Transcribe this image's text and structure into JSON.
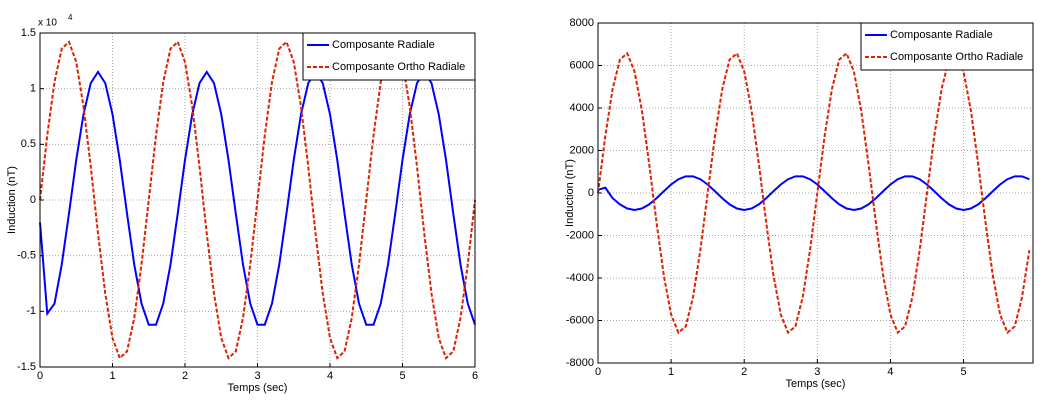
{
  "chart_data": [
    {
      "type": "line",
      "x_label": "Temps (sec)",
      "y_label": "Induction (nT)",
      "axis_multiplier": "x 10",
      "axis_multiplier_exp": "4",
      "x": [
        0,
        0.1,
        0.2,
        0.3,
        0.4,
        0.5,
        0.6,
        0.7,
        0.8,
        0.9,
        1,
        1.1,
        1.2,
        1.3,
        1.4,
        1.5,
        1.6,
        1.7,
        1.8,
        1.9,
        2,
        2.1,
        2.2,
        2.3,
        2.4,
        2.5,
        2.6,
        2.7,
        2.8,
        2.9,
        3,
        3.1,
        3.2,
        3.3,
        3.4,
        3.5,
        3.6,
        3.7,
        3.8,
        3.9,
        4,
        4.1,
        4.2,
        4.3,
        4.4,
        4.5,
        4.6,
        4.7,
        4.8,
        4.9,
        5,
        5.1,
        5.2,
        5.3,
        5.4,
        5.5,
        5.6,
        5.7,
        5.8,
        5.9,
        6
      ],
      "series": [
        {
          "name": "Composante Radiale",
          "color": "#0000ff",
          "dash": false,
          "values": [
            -0.2,
            -1.02,
            -0.93,
            -0.58,
            -0.12,
            0.36,
            0.77,
            1.05,
            1.15,
            1.05,
            0.77,
            0.36,
            -0.12,
            -0.58,
            -0.93,
            -1.12,
            -1.12,
            -0.93,
            -0.58,
            -0.12,
            0.36,
            0.77,
            1.05,
            1.15,
            1.05,
            0.77,
            0.36,
            -0.12,
            -0.58,
            -0.93,
            -1.12,
            -1.12,
            -0.93,
            -0.58,
            -0.12,
            0.36,
            0.77,
            1.05,
            1.15,
            1.05,
            0.77,
            0.36,
            -0.12,
            -0.58,
            -0.93,
            -1.12,
            -1.12,
            -0.93,
            -0.58,
            -0.12,
            0.36,
            0.77,
            1.05,
            1.15,
            1.05,
            0.77,
            0.36,
            -0.12,
            -0.58,
            -0.93,
            -1.12
          ]
        },
        {
          "name": "Composante Ortho Radiale",
          "color": "#dd2200",
          "dash": true,
          "values": [
            0,
            0.58,
            1.06,
            1.36,
            1.42,
            1.24,
            0.84,
            0.3,
            -0.3,
            -0.84,
            -1.24,
            -1.42,
            -1.36,
            -1.06,
            -0.58,
            0,
            0.58,
            1.06,
            1.36,
            1.42,
            1.24,
            0.84,
            0.3,
            -0.3,
            -0.84,
            -1.24,
            -1.42,
            -1.36,
            -1.06,
            -0.58,
            0,
            0.58,
            1.06,
            1.36,
            1.42,
            1.24,
            0.84,
            0.3,
            -0.3,
            -0.84,
            -1.24,
            -1.42,
            -1.36,
            -1.06,
            -0.58,
            0,
            0.58,
            1.06,
            1.36,
            1.42,
            1.24,
            0.84,
            0.3,
            -0.3,
            -0.84,
            -1.24,
            -1.42,
            -1.36,
            -1.06,
            -0.58,
            0
          ]
        }
      ],
      "xlim": [
        0,
        6
      ],
      "xticks": [
        0,
        1,
        2,
        3,
        4,
        5,
        6
      ],
      "ylim": [
        -1.5,
        1.5
      ],
      "yticks": [
        -1.5,
        -1,
        -0.5,
        0,
        0.5,
        1,
        1.5
      ],
      "grid": true,
      "legend": "top-right"
    },
    {
      "type": "line",
      "x_label": "Temps (sec)",
      "y_label": "Induction (nT)",
      "x": [
        0,
        0.1,
        0.2,
        0.3,
        0.4,
        0.5,
        0.6,
        0.7,
        0.8,
        0.9,
        1,
        1.1,
        1.2,
        1.3,
        1.4,
        1.5,
        1.6,
        1.7,
        1.8,
        1.9,
        2,
        2.1,
        2.2,
        2.3,
        2.4,
        2.5,
        2.6,
        2.7,
        2.8,
        2.9,
        3,
        3.1,
        3.2,
        3.3,
        3.4,
        3.5,
        3.6,
        3.7,
        3.8,
        3.9,
        4,
        4.1,
        4.2,
        4.3,
        4.4,
        4.5,
        4.6,
        4.7,
        4.8,
        4.9,
        5,
        5.1,
        5.2,
        5.3,
        5.4,
        5.5,
        5.6,
        5.7,
        5.8,
        5.9
      ],
      "series": [
        {
          "name": "Composante Radiale",
          "color": "#0000ff",
          "dash": false,
          "values": [
            150,
            250,
            -247,
            -535,
            -731,
            -800,
            -731,
            -535,
            -247,
            84,
            400,
            647,
            782,
            782,
            647,
            400,
            84,
            -247,
            -535,
            -731,
            -800,
            -731,
            -535,
            -247,
            84,
            400,
            647,
            782,
            782,
            647,
            400,
            84,
            -247,
            -535,
            -731,
            -800,
            -731,
            -535,
            -247,
            84,
            400,
            647,
            782,
            782,
            647,
            400,
            84,
            -247,
            -535,
            -731,
            -800,
            -731,
            -535,
            -247,
            84,
            400,
            647,
            782,
            782,
            647
          ]
        },
        {
          "name": "Composante Ortho Radiale",
          "color": "#dd2200",
          "dash": true,
          "values": [
            0,
            2690,
            4900,
            6280,
            6570,
            5720,
            3880,
            1370,
            -1370,
            -3880,
            -5720,
            -6570,
            -6280,
            -4900,
            -2690,
            0,
            2690,
            4900,
            6280,
            6570,
            5720,
            3880,
            1370,
            -1370,
            -3880,
            -5720,
            -6570,
            -6280,
            -4900,
            -2690,
            0,
            2690,
            4900,
            6280,
            6570,
            5720,
            3880,
            1370,
            -1370,
            -3880,
            -5720,
            -6570,
            -6280,
            -4900,
            -2690,
            0,
            2690,
            4900,
            6280,
            6570,
            5720,
            3880,
            1370,
            -1370,
            -3880,
            -5720,
            -6570,
            -6280,
            -4900,
            -2690
          ]
        }
      ],
      "xlim": [
        0,
        5.95
      ],
      "xticks": [
        0,
        1,
        2,
        3,
        4,
        5
      ],
      "ylim": [
        -8000,
        8000
      ],
      "yticks": [
        -8000,
        -6000,
        -4000,
        -2000,
        0,
        2000,
        4000,
        6000,
        8000
      ],
      "grid": true,
      "legend": "top-right"
    }
  ]
}
